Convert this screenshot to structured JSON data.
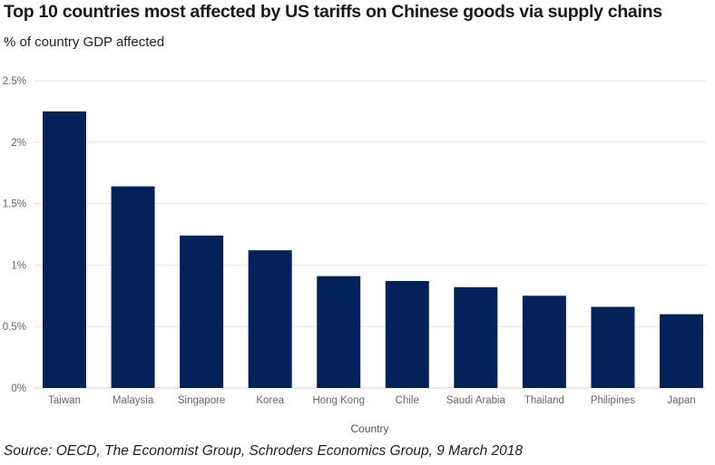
{
  "chart_data": {
    "type": "bar",
    "title": "Top 10 countries most affected by US tariffs on Chinese goods via supply chains",
    "subtitle": "% of country GDP affected",
    "xlabel": "Country",
    "ylabel": "",
    "categories": [
      "Taiwan",
      "Malaysia",
      "Singapore",
      "Korea",
      "Hong Kong",
      "Chile",
      "Saudi Arabia",
      "Thailand",
      "Philipines",
      "Japan"
    ],
    "values": [
      2.25,
      1.64,
      1.24,
      1.12,
      0.91,
      0.87,
      0.82,
      0.75,
      0.66,
      0.6
    ],
    "ylim": [
      0,
      2.5
    ],
    "yticks": [
      0,
      0.5,
      1,
      1.5,
      2,
      2.5
    ],
    "ytick_labels": [
      "0%",
      "0.5%",
      "1%",
      "1.5%",
      "2%",
      "2.5%"
    ],
    "grid": true,
    "bar_color": "#04215a",
    "grid_color": "#e3e3e3",
    "source": "Source: OECD, The Economist Group, Schroders Economics Group, 9 March 2018"
  }
}
